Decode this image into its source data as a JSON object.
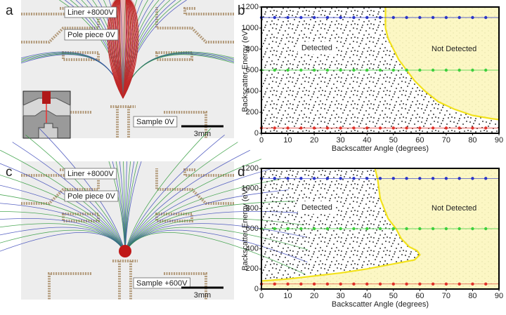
{
  "panels": [
    {
      "letter": "a",
      "labels": [
        "Liner +8000V",
        "Pole piece 0V",
        "Sample 0V"
      ],
      "scale_bar": "3mm"
    },
    {
      "letter": "c",
      "labels": [
        "Liner +8000V",
        "Pole piece 0V",
        "Sample +600V"
      ],
      "scale_bar": "3mm"
    }
  ],
  "chart_data": [
    {
      "type": "scatter",
      "panel_label": "b",
      "xlabel": "Backscatter Angle (degrees)",
      "ylabel": "Backscatter Energy (eV)",
      "xlim": [
        0,
        90
      ],
      "ylim": [
        0,
        1200
      ],
      "xticks": [
        0,
        10,
        20,
        30,
        40,
        50,
        60,
        70,
        80,
        90
      ],
      "yticks": [
        0,
        200,
        400,
        600,
        800,
        1000,
        1200
      ],
      "annotations": [
        "Detected",
        "Not Detected"
      ],
      "x": [
        0,
        5,
        10,
        15,
        20,
        25,
        30,
        35,
        40,
        45,
        50,
        55,
        60,
        65,
        70,
        75,
        80,
        85
      ],
      "series": [
        {
          "color": "#2a35c8",
          "values": [
            1100,
            1100,
            1100,
            1100,
            1100,
            1100,
            1100,
            1100,
            1100,
            1100,
            1100,
            1100,
            1100,
            1100,
            1100,
            1100,
            1100,
            1100
          ]
        },
        {
          "color": "#3ccf3c",
          "values": [
            600,
            600,
            600,
            600,
            600,
            600,
            600,
            600,
            600,
            600,
            600,
            600,
            600,
            600,
            600,
            600,
            600,
            600
          ]
        },
        {
          "color": "#e0322a",
          "values": [
            50,
            50,
            50,
            50,
            50,
            50,
            50,
            50,
            50,
            50,
            50,
            50,
            50,
            50,
            50,
            50,
            50,
            50
          ]
        }
      ],
      "boundary": {
        "color": "#f2e21c",
        "fill": "#fcf7c4",
        "x": [
          47,
          47,
          48,
          50,
          52,
          55,
          58,
          62,
          67,
          73,
          80,
          87,
          90
        ],
        "y": [
          1200,
          1000,
          900,
          800,
          700,
          600,
          500,
          400,
          300,
          230,
          170,
          140,
          130
        ]
      }
    },
    {
      "type": "scatter",
      "panel_label": "d",
      "xlabel": "Backscatter Angle (degrees)",
      "ylabel": "Backscatter Energy (eV)",
      "xlim": [
        0,
        90
      ],
      "ylim": [
        0,
        1200
      ],
      "xticks": [
        0,
        10,
        20,
        30,
        40,
        50,
        60,
        70,
        80,
        90
      ],
      "yticks": [
        0,
        200,
        400,
        600,
        800,
        1000,
        1200
      ],
      "annotations": [
        "Detected",
        "Not Detected"
      ],
      "x": [
        0,
        5,
        10,
        15,
        20,
        25,
        30,
        35,
        40,
        45,
        50,
        55,
        60,
        65,
        70,
        75,
        80,
        85
      ],
      "series": [
        {
          "color": "#2a35c8",
          "values": [
            1100,
            1100,
            1100,
            1100,
            1100,
            1100,
            1100,
            1100,
            1100,
            1100,
            1100,
            1100,
            1100,
            1100,
            1100,
            1100,
            1100,
            1100
          ]
        },
        {
          "color": "#3ccf3c",
          "values": [
            600,
            600,
            600,
            600,
            600,
            600,
            600,
            600,
            600,
            600,
            600,
            600,
            600,
            600,
            600,
            600,
            600,
            600
          ]
        },
        {
          "color": "#e0322a",
          "values": [
            50,
            50,
            50,
            50,
            50,
            50,
            50,
            50,
            50,
            50,
            50,
            50,
            50,
            50,
            50,
            50,
            50,
            50
          ]
        }
      ],
      "boundary": {
        "color": "#f2e21c",
        "fill": "#fcf7c4",
        "x": [
          43,
          44,
          45,
          48,
          51,
          53,
          56,
          59,
          60,
          58,
          50,
          40,
          30,
          20,
          10,
          0
        ],
        "y": [
          1200,
          1100,
          900,
          700,
          600,
          500,
          420,
          380,
          340,
          290,
          250,
          200,
          160,
          130,
          100,
          80
        ]
      }
    }
  ]
}
